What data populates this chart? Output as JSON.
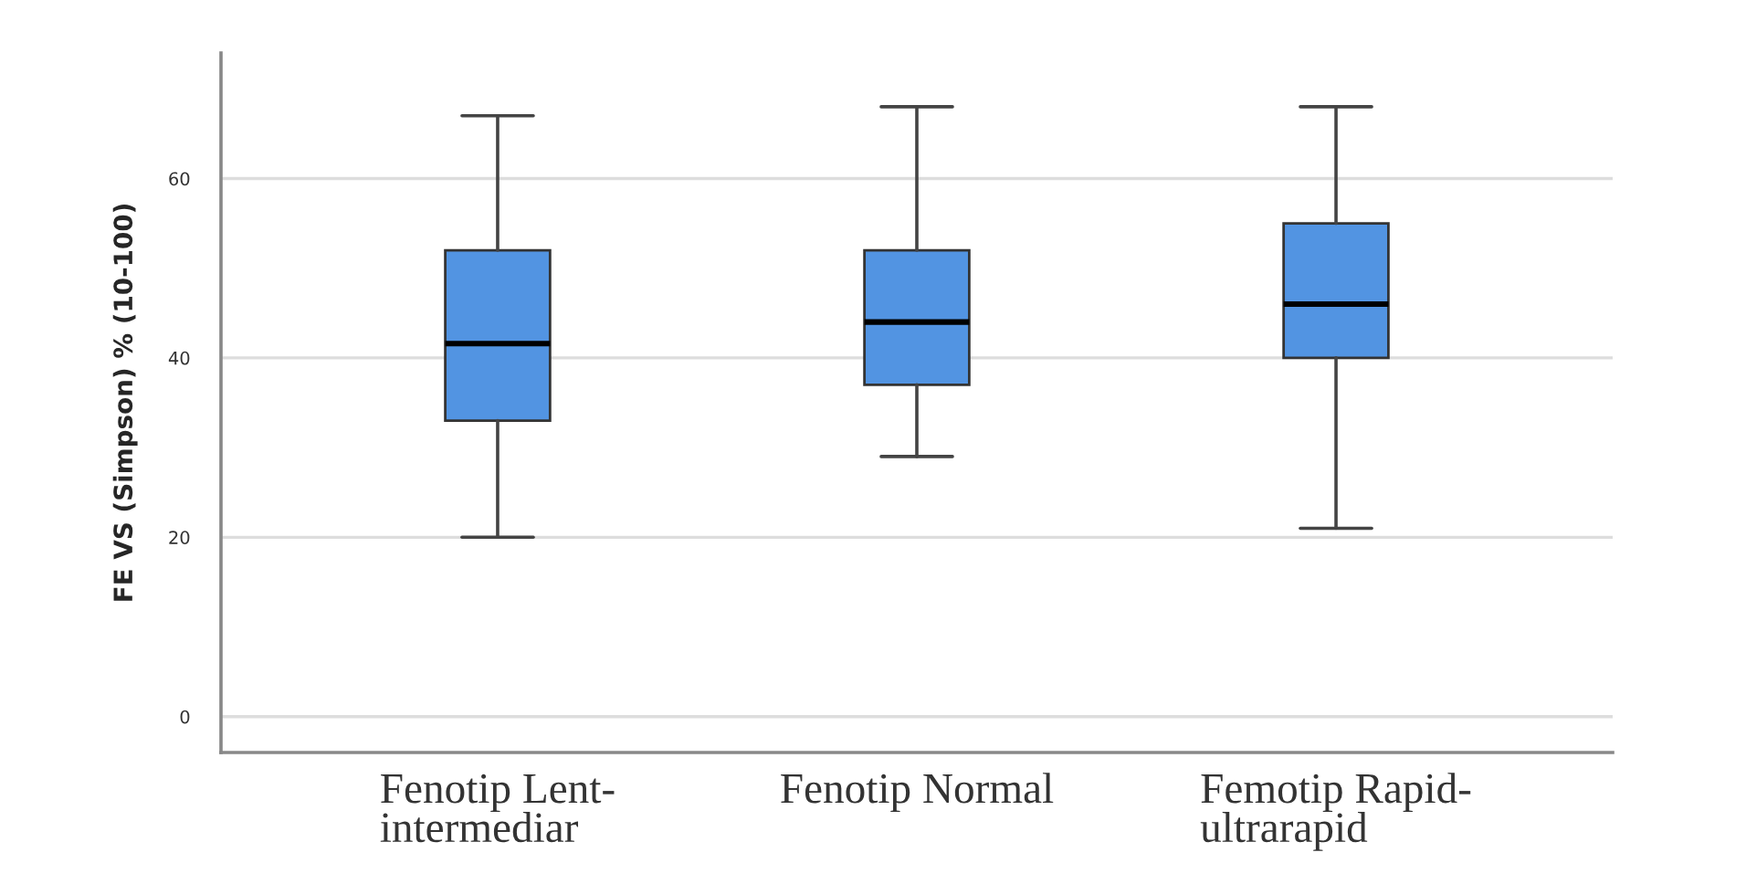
{
  "chart_data": {
    "type": "box",
    "ylabel": "FE VS (Simpson) % (10-100)",
    "categories": [
      "Fenotip Lent-\nintermediar",
      "Fenotip Normal",
      "Femotip Rapid-\nultrarapid"
    ],
    "boxes": [
      {
        "low": 20,
        "q1": 33,
        "median": 41.6,
        "q3": 52,
        "high": 67
      },
      {
        "low": 29,
        "q1": 37,
        "median": 44,
        "q3": 52,
        "high": 68
      },
      {
        "low": 21,
        "q1": 40,
        "median": 46,
        "q3": 55,
        "high": 68
      }
    ],
    "color": "#5294e2",
    "ylim": [
      -4,
      74
    ],
    "yticks": [
      0,
      20,
      40,
      60
    ],
    "grid": "y"
  }
}
